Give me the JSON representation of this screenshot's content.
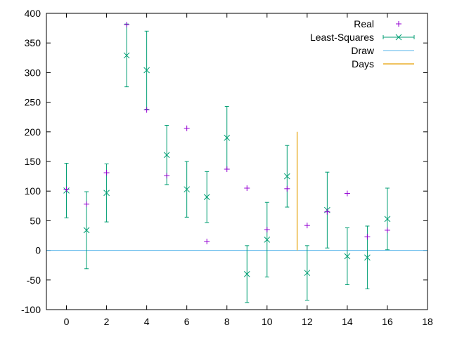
{
  "chart_data": {
    "type": "scatter",
    "x_ticks": [
      "0",
      "2",
      "4",
      "6",
      "8",
      "10",
      "12",
      "14",
      "16",
      "18"
    ],
    "y_ticks": [
      "-100",
      "-50",
      "0",
      "50",
      "100",
      "150",
      "200",
      "250",
      "300",
      "350",
      "400"
    ],
    "xlim": [
      -1,
      18
    ],
    "ylim": [
      -100,
      400
    ],
    "grid": false,
    "legend_position": "top-right",
    "legend": {
      "real": "Real",
      "least_squares": "Least-Squares",
      "draw": "Draw",
      "days": "Days"
    },
    "colors": {
      "real": "#9400d3",
      "least_squares": "#009e73",
      "draw": "#56b4e9",
      "days": "#e69f00"
    },
    "real": {
      "x": [
        0,
        1,
        2,
        3,
        4,
        5,
        6,
        7,
        8,
        9,
        10,
        11,
        12,
        13,
        14,
        15,
        16
      ],
      "y": [
        103,
        78,
        131,
        381,
        237,
        126,
        206,
        15,
        137,
        105,
        35,
        104,
        42,
        65,
        96,
        23,
        34
      ]
    },
    "least_squares": {
      "x": [
        0,
        1,
        2,
        3,
        4,
        5,
        6,
        7,
        8,
        9,
        10,
        11,
        12,
        13,
        14,
        15,
        16
      ],
      "y": [
        101,
        34,
        97,
        329,
        304,
        161,
        103,
        90,
        190,
        -40,
        18,
        125,
        -38,
        68,
        -10,
        -12,
        53
      ],
      "err": [
        46,
        65,
        49,
        53,
        66,
        50,
        47,
        43,
        53,
        48,
        63,
        52,
        46,
        64,
        48,
        53,
        52
      ]
    },
    "draw": {
      "y": 0
    },
    "days": {
      "x": 11.5,
      "y_range": [
        0,
        200
      ]
    }
  }
}
